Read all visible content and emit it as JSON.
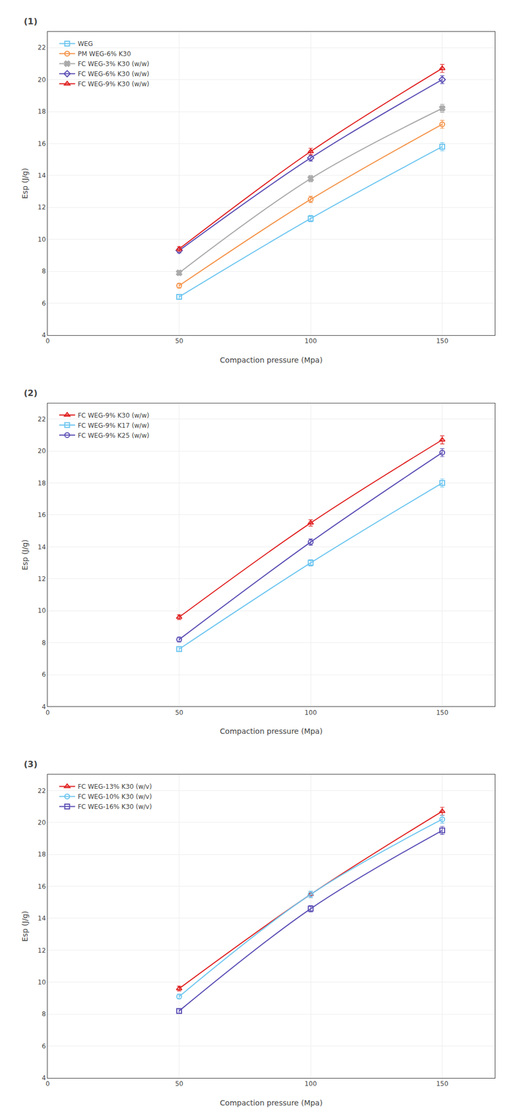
{
  "chart_data": [
    {
      "type": "line",
      "title": "(1)",
      "x": [
        50,
        100,
        150
      ],
      "xlabel": "Compaction pressure (Mpa)",
      "ylabel": "Esp (J/g)",
      "xlim": [
        0,
        170
      ],
      "ylim": [
        4,
        23
      ],
      "xticks": [
        0,
        50,
        100,
        150
      ],
      "yticks": [
        4,
        6,
        8,
        10,
        12,
        14,
        16,
        18,
        20,
        22
      ],
      "legend": "upper left",
      "series": [
        {
          "name": "WEG",
          "color": "#6EC6F0",
          "marker": "square-open",
          "values": [
            6.4,
            11.3,
            15.8
          ],
          "yerr": [
            0.15,
            0.2,
            0.25
          ]
        },
        {
          "name": "PM WEG-6% K30",
          "color": "#F4944A",
          "marker": "circle-open",
          "values": [
            7.1,
            12.5,
            17.2
          ],
          "yerr": [
            0.15,
            0.2,
            0.25
          ]
        },
        {
          "name": "FC WEG-3% K30 (w/w)",
          "color": "#AAAAAA",
          "marker": "x",
          "values": [
            7.9,
            13.8,
            18.2
          ],
          "yerr": [
            0.15,
            0.2,
            0.25
          ]
        },
        {
          "name": "FC WEG-6% K30 (w/w)",
          "color": "#5B4FB5",
          "marker": "diamond-open",
          "values": [
            9.3,
            15.1,
            20.0
          ],
          "yerr": [
            0.15,
            0.2,
            0.25
          ]
        },
        {
          "name": "FC WEG-9% K30 (w/w)",
          "color": "#E02020",
          "marker": "triangle-up-open",
          "values": [
            9.4,
            15.5,
            20.7
          ],
          "yerr": [
            0.15,
            0.2,
            0.25
          ]
        }
      ]
    },
    {
      "type": "line",
      "title": "(2)",
      "x": [
        50,
        100,
        150
      ],
      "xlabel": "Compaction pressure (Mpa)",
      "ylabel": "Esp (J/g)",
      "xlim": [
        0,
        170
      ],
      "ylim": [
        4,
        23
      ],
      "xticks": [
        0,
        50,
        100,
        150
      ],
      "yticks": [
        4,
        6,
        8,
        10,
        12,
        14,
        16,
        18,
        20,
        22
      ],
      "legend": "upper left",
      "series": [
        {
          "name": "FC WEG-9% K30 (w/w)",
          "color": "#E02020",
          "marker": "triangle-up-open",
          "values": [
            9.6,
            15.5,
            20.7
          ],
          "yerr": [
            0.15,
            0.2,
            0.25
          ]
        },
        {
          "name": "FC WEG-9% K17 (w/w)",
          "color": "#6EC6F0",
          "marker": "square-open",
          "values": [
            7.6,
            13.0,
            18.0
          ],
          "yerr": [
            0.15,
            0.2,
            0.25
          ]
        },
        {
          "name": "FC WEG-9% K25 (w/w)",
          "color": "#5B4FB5",
          "marker": "circle-open",
          "values": [
            8.2,
            14.3,
            19.9
          ],
          "yerr": [
            0.15,
            0.2,
            0.25
          ]
        }
      ]
    },
    {
      "type": "line",
      "title": "(3)",
      "x": [
        50,
        100,
        150
      ],
      "xlabel": "Compaction pressure (Mpa)",
      "ylabel": "Esp (J/g)",
      "xlim": [
        0,
        170
      ],
      "ylim": [
        4,
        23
      ],
      "xticks": [
        0,
        50,
        100,
        150
      ],
      "yticks": [
        4,
        6,
        8,
        10,
        12,
        14,
        16,
        18,
        20,
        22
      ],
      "legend": "upper left",
      "series": [
        {
          "name": "FC WEG-13% K30 (w/v)",
          "color": "#E02020",
          "marker": "triangle-up-open",
          "values": [
            9.6,
            15.5,
            20.7
          ],
          "yerr": [
            0.15,
            0.2,
            0.25
          ]
        },
        {
          "name": "FC WEG-10% K30 (w/v)",
          "color": "#6EC6F0",
          "marker": "circle-open",
          "values": [
            9.1,
            15.5,
            20.2
          ],
          "yerr": [
            0.15,
            0.2,
            0.25
          ]
        },
        {
          "name": "FC WEG-16% K30 (w/v)",
          "color": "#5B4FB5",
          "marker": "square-open",
          "values": [
            8.2,
            14.6,
            19.5
          ],
          "yerr": [
            0.15,
            0.2,
            0.25
          ]
        }
      ]
    }
  ]
}
